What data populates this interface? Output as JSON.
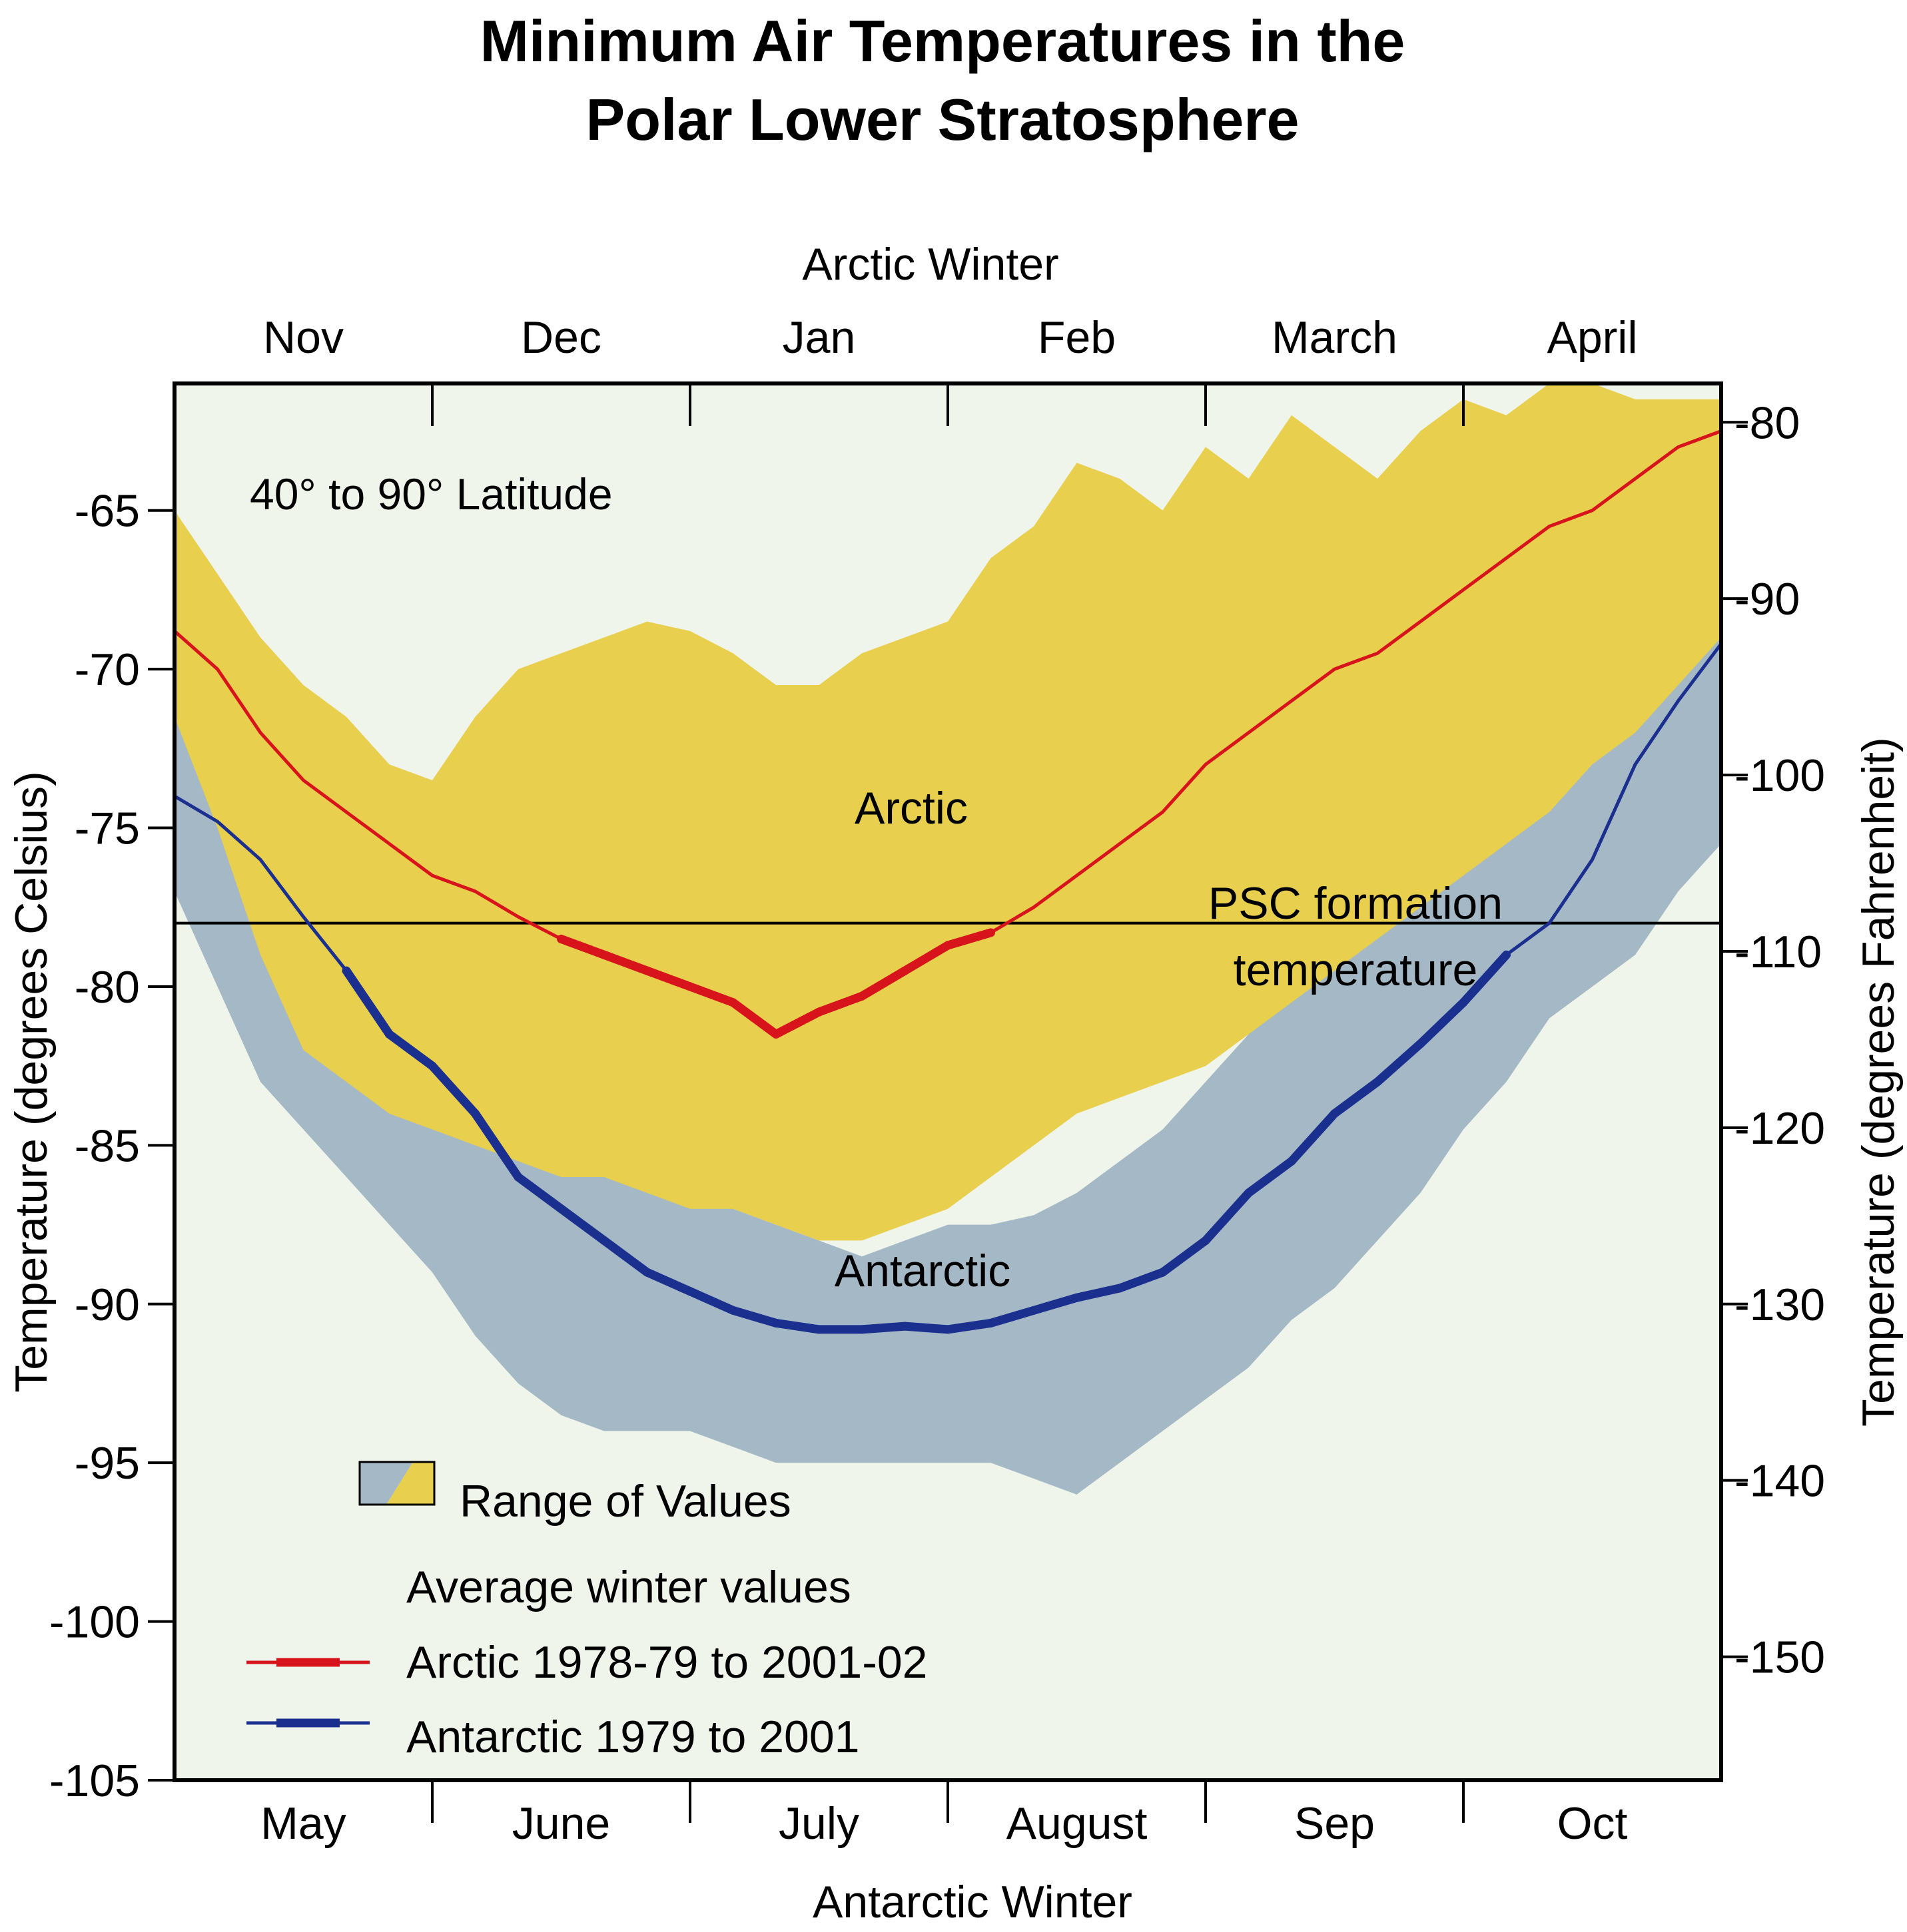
{
  "chart_data": {
    "type": "area",
    "title": [
      "Minimum Air Temperatures in the",
      "Polar Lower Stratosphere"
    ],
    "top_axis_title": "Arctic  Winter",
    "bottom_axis_title": "Antarctic Winter",
    "top_months": [
      "Nov",
      "Dec",
      "Jan",
      "Feb",
      "March",
      "April"
    ],
    "bottom_months": [
      "May",
      "June",
      "July",
      "August",
      "Sep",
      "Oct"
    ],
    "y_left_label": "Temperature (degrees Celsius)",
    "y_right_label": "Temperature (degrees Fahrenheit)",
    "y_left_ticks": [
      "-65",
      "-70",
      "-75",
      "-80",
      "-85",
      "-90",
      "-95",
      "-100",
      "-105"
    ],
    "y_right_ticks": [
      "-80",
      "-90",
      "-100",
      "-110",
      "-120",
      "-130",
      "-140",
      "-150"
    ],
    "ylim": [
      -105,
      -61
    ],
    "region_note": "40° to 90° Latitude",
    "psc_label": [
      "PSC formation",
      "temperature"
    ],
    "psc_value": -78,
    "arctic_label": "Arctic",
    "antarctic_label": "Antarctic",
    "legend": {
      "range": "Range of Values",
      "avg_header": "Average winter values",
      "arctic": "Arctic 1978-79 to 2001-02",
      "antarctic": "Antarctic 1979 to 2001"
    },
    "colors": {
      "arctic_line": "#d7141b",
      "antarctic_line": "#1b2f8f",
      "arctic_range": "#e8cf4d",
      "antarctic_range": "#a5b8c6",
      "background": "#eff5ea"
    },
    "x_domain_days": [
      0,
      180
    ],
    "series": [
      {
        "name": "Arctic 1978-79 to 2001-02",
        "x": [
          0,
          5,
          10,
          15,
          20,
          25,
          30,
          35,
          40,
          45,
          50,
          55,
          60,
          65,
          70,
          75,
          80,
          85,
          90,
          95,
          100,
          105,
          110,
          115,
          120,
          125,
          130,
          135,
          140,
          145,
          150,
          155,
          160,
          165,
          170,
          175,
          180
        ],
        "y": [
          -68.8,
          -70,
          -72,
          -73.5,
          -74.5,
          -75.5,
          -76.5,
          -77,
          -77.8,
          -78.5,
          -79,
          -79.5,
          -80,
          -80.5,
          -81.5,
          -80.8,
          -80.3,
          -79.5,
          -78.7,
          -78.3,
          -77.5,
          -76.5,
          -75.5,
          -74.5,
          -73,
          -72,
          -71,
          -70,
          -69.5,
          -68.5,
          -67.5,
          -66.5,
          -65.5,
          -65,
          -64,
          -63,
          -62.5
        ]
      },
      {
        "name": "Antarctic 1979 to 2001",
        "x": [
          0,
          5,
          10,
          15,
          20,
          25,
          30,
          35,
          40,
          45,
          50,
          55,
          60,
          65,
          70,
          75,
          80,
          85,
          90,
          95,
          100,
          105,
          110,
          115,
          120,
          125,
          130,
          135,
          140,
          145,
          150,
          155,
          160,
          165,
          170,
          175,
          180
        ],
        "y": [
          -74,
          -74.8,
          -76,
          -77.8,
          -79.5,
          -81.5,
          -82.5,
          -84,
          -86,
          -87,
          -88,
          -89,
          -89.6,
          -90.2,
          -90.6,
          -90.8,
          -90.8,
          -90.7,
          -90.8,
          -90.6,
          -90.2,
          -89.8,
          -89.5,
          -89,
          -88,
          -86.5,
          -85.5,
          -84,
          -83,
          -81.8,
          -80.5,
          -79,
          -78,
          -76,
          -73,
          -71,
          -69.2
        ]
      }
    ],
    "ranges": [
      {
        "name": "Arctic",
        "x": [
          0,
          5,
          10,
          15,
          20,
          25,
          30,
          35,
          40,
          45,
          50,
          55,
          60,
          65,
          70,
          75,
          80,
          85,
          90,
          95,
          100,
          105,
          110,
          115,
          120,
          125,
          130,
          135,
          140,
          145,
          150,
          155,
          160,
          165,
          170,
          175,
          180
        ],
        "high": [
          -65,
          -67,
          -69,
          -70.5,
          -71.5,
          -73,
          -73.5,
          -71.5,
          -70,
          -69.5,
          -69,
          -68.5,
          -68.8,
          -69.5,
          -70.5,
          -70.5,
          -69.5,
          -69,
          -68.5,
          -66.5,
          -65.5,
          -63.5,
          -64,
          -65,
          -63,
          -64,
          -62,
          -63,
          -64,
          -62.5,
          -61.5,
          -62,
          -61,
          -61,
          -61.5,
          -61.5,
          -61.5
        ],
        "low": [
          -71.5,
          -75,
          -79,
          -82,
          -83,
          -84,
          -84.5,
          -85,
          -85.5,
          -86,
          -86,
          -86.5,
          -87,
          -87,
          -87.5,
          -88,
          -88,
          -87.5,
          -87,
          -86,
          -85,
          -84,
          -83.5,
          -83,
          -82.5,
          -81.5,
          -80.5,
          -79.5,
          -78.5,
          -77.5,
          -76.5,
          -75.5,
          -74.5,
          -73,
          -72,
          -70.5,
          -69
        ]
      },
      {
        "name": "Antarctic",
        "x": [
          0,
          5,
          10,
          15,
          20,
          25,
          30,
          35,
          40,
          45,
          50,
          55,
          60,
          65,
          70,
          75,
          80,
          85,
          90,
          95,
          100,
          105,
          110,
          115,
          120,
          125,
          130,
          135,
          140,
          145,
          150,
          155,
          160,
          165,
          170,
          175,
          180
        ],
        "high": [
          -71.5,
          -73.5,
          -75,
          -76.5,
          -77.5,
          -79,
          -80,
          -81.5,
          -83,
          -84,
          -85,
          -85.5,
          -86.5,
          -87,
          -87.5,
          -88,
          -88.5,
          -88,
          -87.5,
          -87.5,
          -87.2,
          -86.5,
          -85.5,
          -84.5,
          -83,
          -81.5,
          -80,
          -78.5,
          -76,
          -74,
          -72,
          -70,
          -69.5,
          -68,
          -66.5,
          -66,
          -65.5
        ],
        "low": [
          -77,
          -80,
          -83,
          -84.5,
          -86,
          -87.5,
          -89,
          -91,
          -92.5,
          -93.5,
          -94,
          -94,
          -94,
          -94.5,
          -95,
          -95,
          -95,
          -95,
          -95,
          -95,
          -95.5,
          -96,
          -95,
          -94,
          -93,
          -92,
          -90.5,
          -89.5,
          -88,
          -86.5,
          -84.5,
          -83,
          -81,
          -80,
          -79,
          -77,
          -75.5
        ]
      }
    ]
  }
}
